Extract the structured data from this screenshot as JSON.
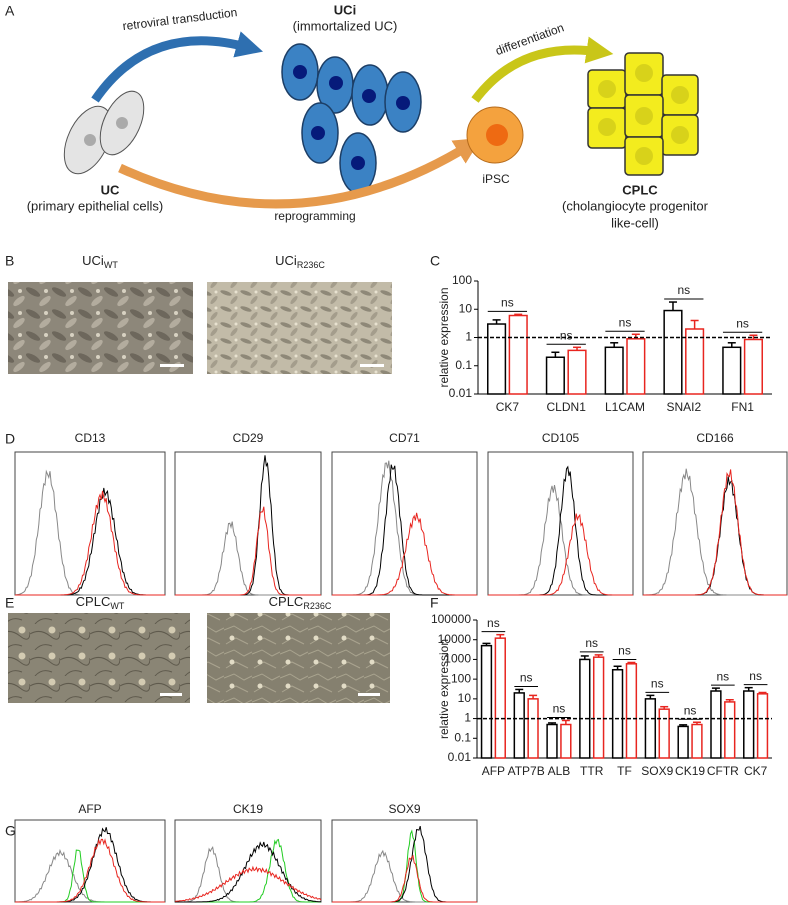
{
  "panel_labels": [
    "A",
    "B",
    "C",
    "D",
    "E",
    "F",
    "G"
  ],
  "diagram": {
    "transduction": "retroviral transduction",
    "uci": "UCi",
    "uci_sub": "(immortalized UC)",
    "differentiation": "differentiation",
    "uc": "UC",
    "uc_sub": "(primary epithelial cells)",
    "reprogramming": "reprogramming",
    "ipsc": "iPSC",
    "cplc": "CPLC",
    "cplc_sub1": "(cholangiocyte progenitor",
    "cplc_sub2": "like-cell)"
  },
  "images_b": [
    {
      "main": "UCi",
      "sub": "WT"
    },
    {
      "main": "UCi",
      "sub": "R236C"
    }
  ],
  "flow_d": [
    "CD13",
    "CD29",
    "CD71",
    "CD105",
    "CD166"
  ],
  "images_e": [
    {
      "main": "CPLC",
      "sub": "WT"
    },
    {
      "main": "CPLC",
      "sub": "R236C"
    }
  ],
  "flow_g": [
    "AFP",
    "CK19",
    "SOX9"
  ],
  "chart_data": [
    {
      "type": "bar",
      "ylabel": "relative expression",
      "categories": [
        "CK7",
        "CLDN1",
        "L1CAM",
        "SNAI2",
        "FN1"
      ],
      "series": [
        {
          "color": "#000000",
          "values": [
            3,
            0.2,
            0.45,
            9,
            0.45
          ],
          "errors": [
            1.2,
            0.1,
            0.2,
            9,
            0.2
          ]
        },
        {
          "color": "#e8251f",
          "values": [
            6,
            0.35,
            0.9,
            2,
            0.85
          ],
          "errors": [
            0.6,
            0.1,
            0.4,
            2,
            0.35
          ]
        }
      ],
      "annotations": [
        "ns",
        "ns",
        "ns",
        "ns",
        "ns"
      ],
      "ylim": [
        0.01,
        100
      ],
      "yticks": [
        0.01,
        0.1,
        1,
        10,
        100
      ],
      "log_scale": true,
      "reference_line": 1
    },
    {
      "type": "bar",
      "ylabel": "relative expression",
      "categories": [
        "AFP",
        "ATP7B",
        "ALB",
        "TTR",
        "TF",
        "SOX9",
        "CK19",
        "CFTR",
        "CK7"
      ],
      "series": [
        {
          "color": "#000000",
          "values": [
            5000,
            20,
            0.5,
            1000,
            300,
            10,
            0.4,
            25,
            25
          ],
          "errors": [
            1500,
            10,
            0.1,
            500,
            150,
            5,
            0.08,
            10,
            12
          ]
        },
        {
          "color": "#e8251f",
          "values": [
            12000,
            10,
            0.5,
            1300,
            600,
            3,
            0.5,
            7,
            18
          ],
          "errors": [
            6000,
            5,
            0.3,
            400,
            100,
            1,
            0.15,
            2,
            3
          ]
        }
      ],
      "annotations": [
        "ns",
        "ns",
        "ns",
        "ns",
        "ns",
        "ns",
        "ns",
        "ns",
        "ns"
      ],
      "ylim": [
        0.01,
        100000
      ],
      "yticks": [
        0.01,
        0.1,
        1,
        10,
        100,
        1000,
        10000,
        100000
      ],
      "log_scale": true,
      "reference_line": 1
    }
  ]
}
